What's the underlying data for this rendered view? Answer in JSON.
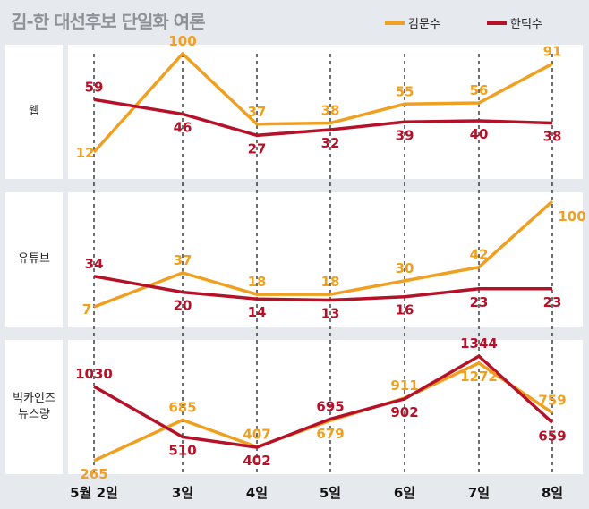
{
  "title": "김-한 대선후보 단일화 여론",
  "legend": [
    {
      "name": "김문수",
      "color": "#f0a020"
    },
    {
      "name": "한덕수",
      "color": "#b5122a"
    }
  ],
  "chart_data": [
    {
      "type": "line",
      "title": "웹",
      "categories": [
        "5월 2일",
        "3일",
        "4일",
        "5일",
        "6일",
        "7일",
        "8일"
      ],
      "series": [
        {
          "name": "김문수",
          "values": [
            12,
            100,
            37,
            38,
            55,
            56,
            91
          ]
        },
        {
          "name": "한덕수",
          "values": [
            59,
            46,
            27,
            32,
            39,
            40,
            38
          ]
        }
      ],
      "ylim": [
        0,
        100
      ]
    },
    {
      "type": "line",
      "title": "유튜브",
      "categories": [
        "5월 2일",
        "3일",
        "4일",
        "5일",
        "6일",
        "7일",
        "8일"
      ],
      "series": [
        {
          "name": "김문수",
          "values": [
            7,
            37,
            18,
            18,
            30,
            42,
            100
          ]
        },
        {
          "name": "한덕수",
          "values": [
            34,
            20,
            14,
            13,
            16,
            23,
            23
          ]
        }
      ],
      "ylim": [
        0,
        100
      ]
    },
    {
      "type": "line",
      "title": "빅카인즈 뉴스량",
      "categories": [
        "5월 2일",
        "3일",
        "4일",
        "5일",
        "6일",
        "7일",
        "8일"
      ],
      "series": [
        {
          "name": "김문수",
          "values": [
            265,
            685,
            407,
            679,
            911,
            1272,
            759
          ]
        },
        {
          "name": "한덕수",
          "values": [
            1030,
            510,
            402,
            695,
            902,
            1344,
            659
          ]
        }
      ],
      "ylim": [
        200,
        1400
      ]
    }
  ],
  "rows": [
    {
      "label_lines": [
        "웹"
      ]
    },
    {
      "label_lines": [
        "유튜브"
      ]
    },
    {
      "label_lines": [
        "빅카인즈",
        "뉴스량"
      ]
    }
  ],
  "xlabels": [
    "5월 2일",
    "3일",
    "4일",
    "5일",
    "6일",
    "7일",
    "8일"
  ]
}
